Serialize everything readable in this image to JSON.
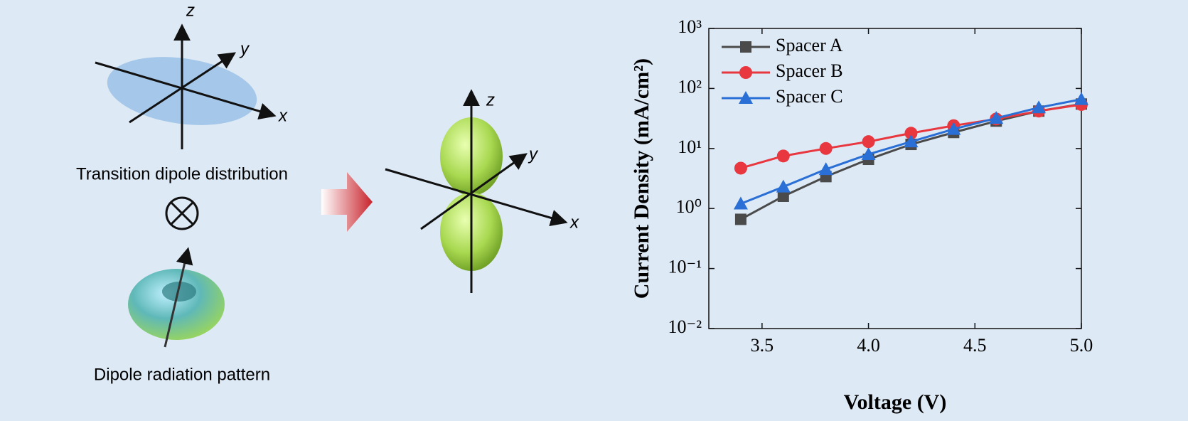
{
  "diagram": {
    "left_axes": {
      "z": "z",
      "y": "y",
      "x": "x"
    },
    "caption_top": "Transition dipole distribution",
    "caption_bottom": "Dipole radiation pattern",
    "right_axes": {
      "z": "z",
      "y": "y",
      "x": "x"
    }
  },
  "chart_data": {
    "type": "line",
    "xlabel": "Voltage (V)",
    "ylabel": "Current Density (mA/cm²)",
    "x": [
      3.4,
      3.6,
      3.8,
      4.0,
      4.2,
      4.4,
      4.6,
      4.8,
      5.0
    ],
    "series": [
      {
        "name": "Spacer A",
        "color": "#4a4a4a",
        "marker": "square",
        "values": [
          0.66,
          1.6,
          3.4,
          6.6,
          11.7,
          18.5,
          28.6,
          42,
          55
        ]
      },
      {
        "name": "Spacer B",
        "color": "#e8373f",
        "marker": "circle",
        "values": [
          4.7,
          7.5,
          10,
          13,
          18,
          24,
          31,
          42,
          54
        ]
      },
      {
        "name": "Spacer C",
        "color": "#2a6fd6",
        "marker": "triangle",
        "values": [
          1.2,
          2.3,
          4.5,
          8,
          13,
          21,
          32,
          48,
          66
        ]
      }
    ],
    "xlim": [
      3.25,
      5.0
    ],
    "xticks": [
      3.5,
      {
        "value": 4,
        "label": "4.0"
      },
      4.5,
      {
        "value": 5,
        "label": "5.0"
      }
    ],
    "yscale": "log",
    "ylim": [
      0.01,
      1000
    ],
    "yticks": [
      {
        "value": 0.01,
        "label": "10⁻²"
      },
      {
        "value": 0.1,
        "label": "10⁻¹"
      },
      {
        "value": 1,
        "label": "10⁰"
      },
      {
        "value": 10,
        "label": "10¹"
      },
      {
        "value": 100,
        "label": "10²"
      },
      {
        "value": 1000,
        "label": "10³"
      }
    ],
    "legend": "top-left",
    "grid": false
  }
}
